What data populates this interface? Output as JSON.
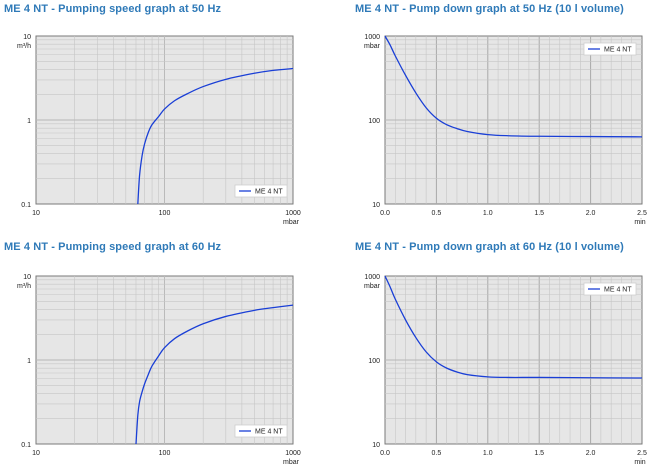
{
  "colors": {
    "series": "#1a3fd6",
    "title": "#2f7ab8",
    "plot_bg": "#e6e6e6"
  },
  "chart_data": [
    {
      "type": "line",
      "title": "ME 4 NT - Pumping speed graph at 50 Hz",
      "xlabel": "mbar",
      "ylabel": "m³/h",
      "xscale": "log",
      "yscale": "log",
      "xlim": [
        10,
        1000
      ],
      "ylim": [
        0.1,
        10
      ],
      "x_ticks": [
        "10",
        "100",
        "1000"
      ],
      "y_ticks": [
        "0.1",
        "1",
        "10"
      ],
      "grid": true,
      "legend_position": "bottom-right",
      "series": [
        {
          "name": "ME 4 NT",
          "x": [
            62,
            64,
            67,
            70,
            75,
            80,
            90,
            100,
            120,
            150,
            200,
            300,
            500,
            700,
            1000
          ],
          "y": [
            0.1,
            0.22,
            0.38,
            0.52,
            0.72,
            0.88,
            1.1,
            1.35,
            1.7,
            2.05,
            2.5,
            3.05,
            3.6,
            3.9,
            4.1
          ]
        }
      ]
    },
    {
      "type": "line",
      "title": "ME 4 NT - Pump down graph at 50 Hz (10 l volume)",
      "xlabel": "min",
      "ylabel": "mbar",
      "xscale": "linear",
      "yscale": "log",
      "xlim": [
        0,
        2.5
      ],
      "ylim": [
        10,
        1000
      ],
      "x_ticks": [
        "0.0",
        "0.5",
        "1.0",
        "1.5",
        "2.0",
        "2.5"
      ],
      "y_ticks": [
        "10",
        "100",
        "1000"
      ],
      "grid": true,
      "legend_position": "top-right",
      "series": [
        {
          "name": "ME 4 NT",
          "x": [
            0,
            0.05,
            0.1,
            0.2,
            0.3,
            0.4,
            0.5,
            0.6,
            0.7,
            0.8,
            1.0,
            1.2,
            1.5,
            2.0,
            2.5
          ],
          "y": [
            1000,
            780,
            580,
            340,
            210,
            140,
            105,
            88,
            79,
            73,
            67,
            65,
            64,
            63.5,
            63
          ]
        }
      ]
    },
    {
      "type": "line",
      "title": "ME 4 NT - Pumping speed graph at 60 Hz",
      "xlabel": "mbar",
      "ylabel": "m³/h",
      "xscale": "log",
      "yscale": "log",
      "xlim": [
        10,
        1000
      ],
      "ylim": [
        0.1,
        10
      ],
      "x_ticks": [
        "10",
        "100",
        "1000"
      ],
      "y_ticks": [
        "0.1",
        "1",
        "10"
      ],
      "grid": true,
      "legend_position": "bottom-right",
      "series": [
        {
          "name": "ME 4 NT",
          "x": [
            60,
            62,
            64,
            67,
            70,
            75,
            80,
            90,
            100,
            120,
            150,
            200,
            300,
            500,
            700,
            1000
          ],
          "y": [
            0.1,
            0.22,
            0.32,
            0.42,
            0.52,
            0.68,
            0.85,
            1.12,
            1.4,
            1.8,
            2.2,
            2.7,
            3.3,
            3.9,
            4.2,
            4.5
          ]
        }
      ]
    },
    {
      "type": "line",
      "title": "ME 4 NT - Pump down graph at 60 Hz (10 l volume)",
      "xlabel": "min",
      "ylabel": "mbar",
      "xscale": "linear",
      "yscale": "log",
      "xlim": [
        0,
        2.5
      ],
      "ylim": [
        10,
        1000
      ],
      "x_ticks": [
        "0.0",
        "0.5",
        "1.0",
        "1.5",
        "2.0",
        "2.5"
      ],
      "y_ticks": [
        "10",
        "100",
        "1000"
      ],
      "grid": true,
      "legend_position": "top-right",
      "series": [
        {
          "name": "ME 4 NT",
          "x": [
            0,
            0.05,
            0.1,
            0.2,
            0.3,
            0.4,
            0.5,
            0.6,
            0.7,
            0.8,
            1.0,
            1.2,
            1.5,
            2.0,
            2.5
          ],
          "y": [
            1000,
            740,
            530,
            300,
            185,
            125,
            95,
            80,
            72,
            67,
            63,
            62,
            62,
            61.5,
            61
          ]
        }
      ]
    }
  ]
}
